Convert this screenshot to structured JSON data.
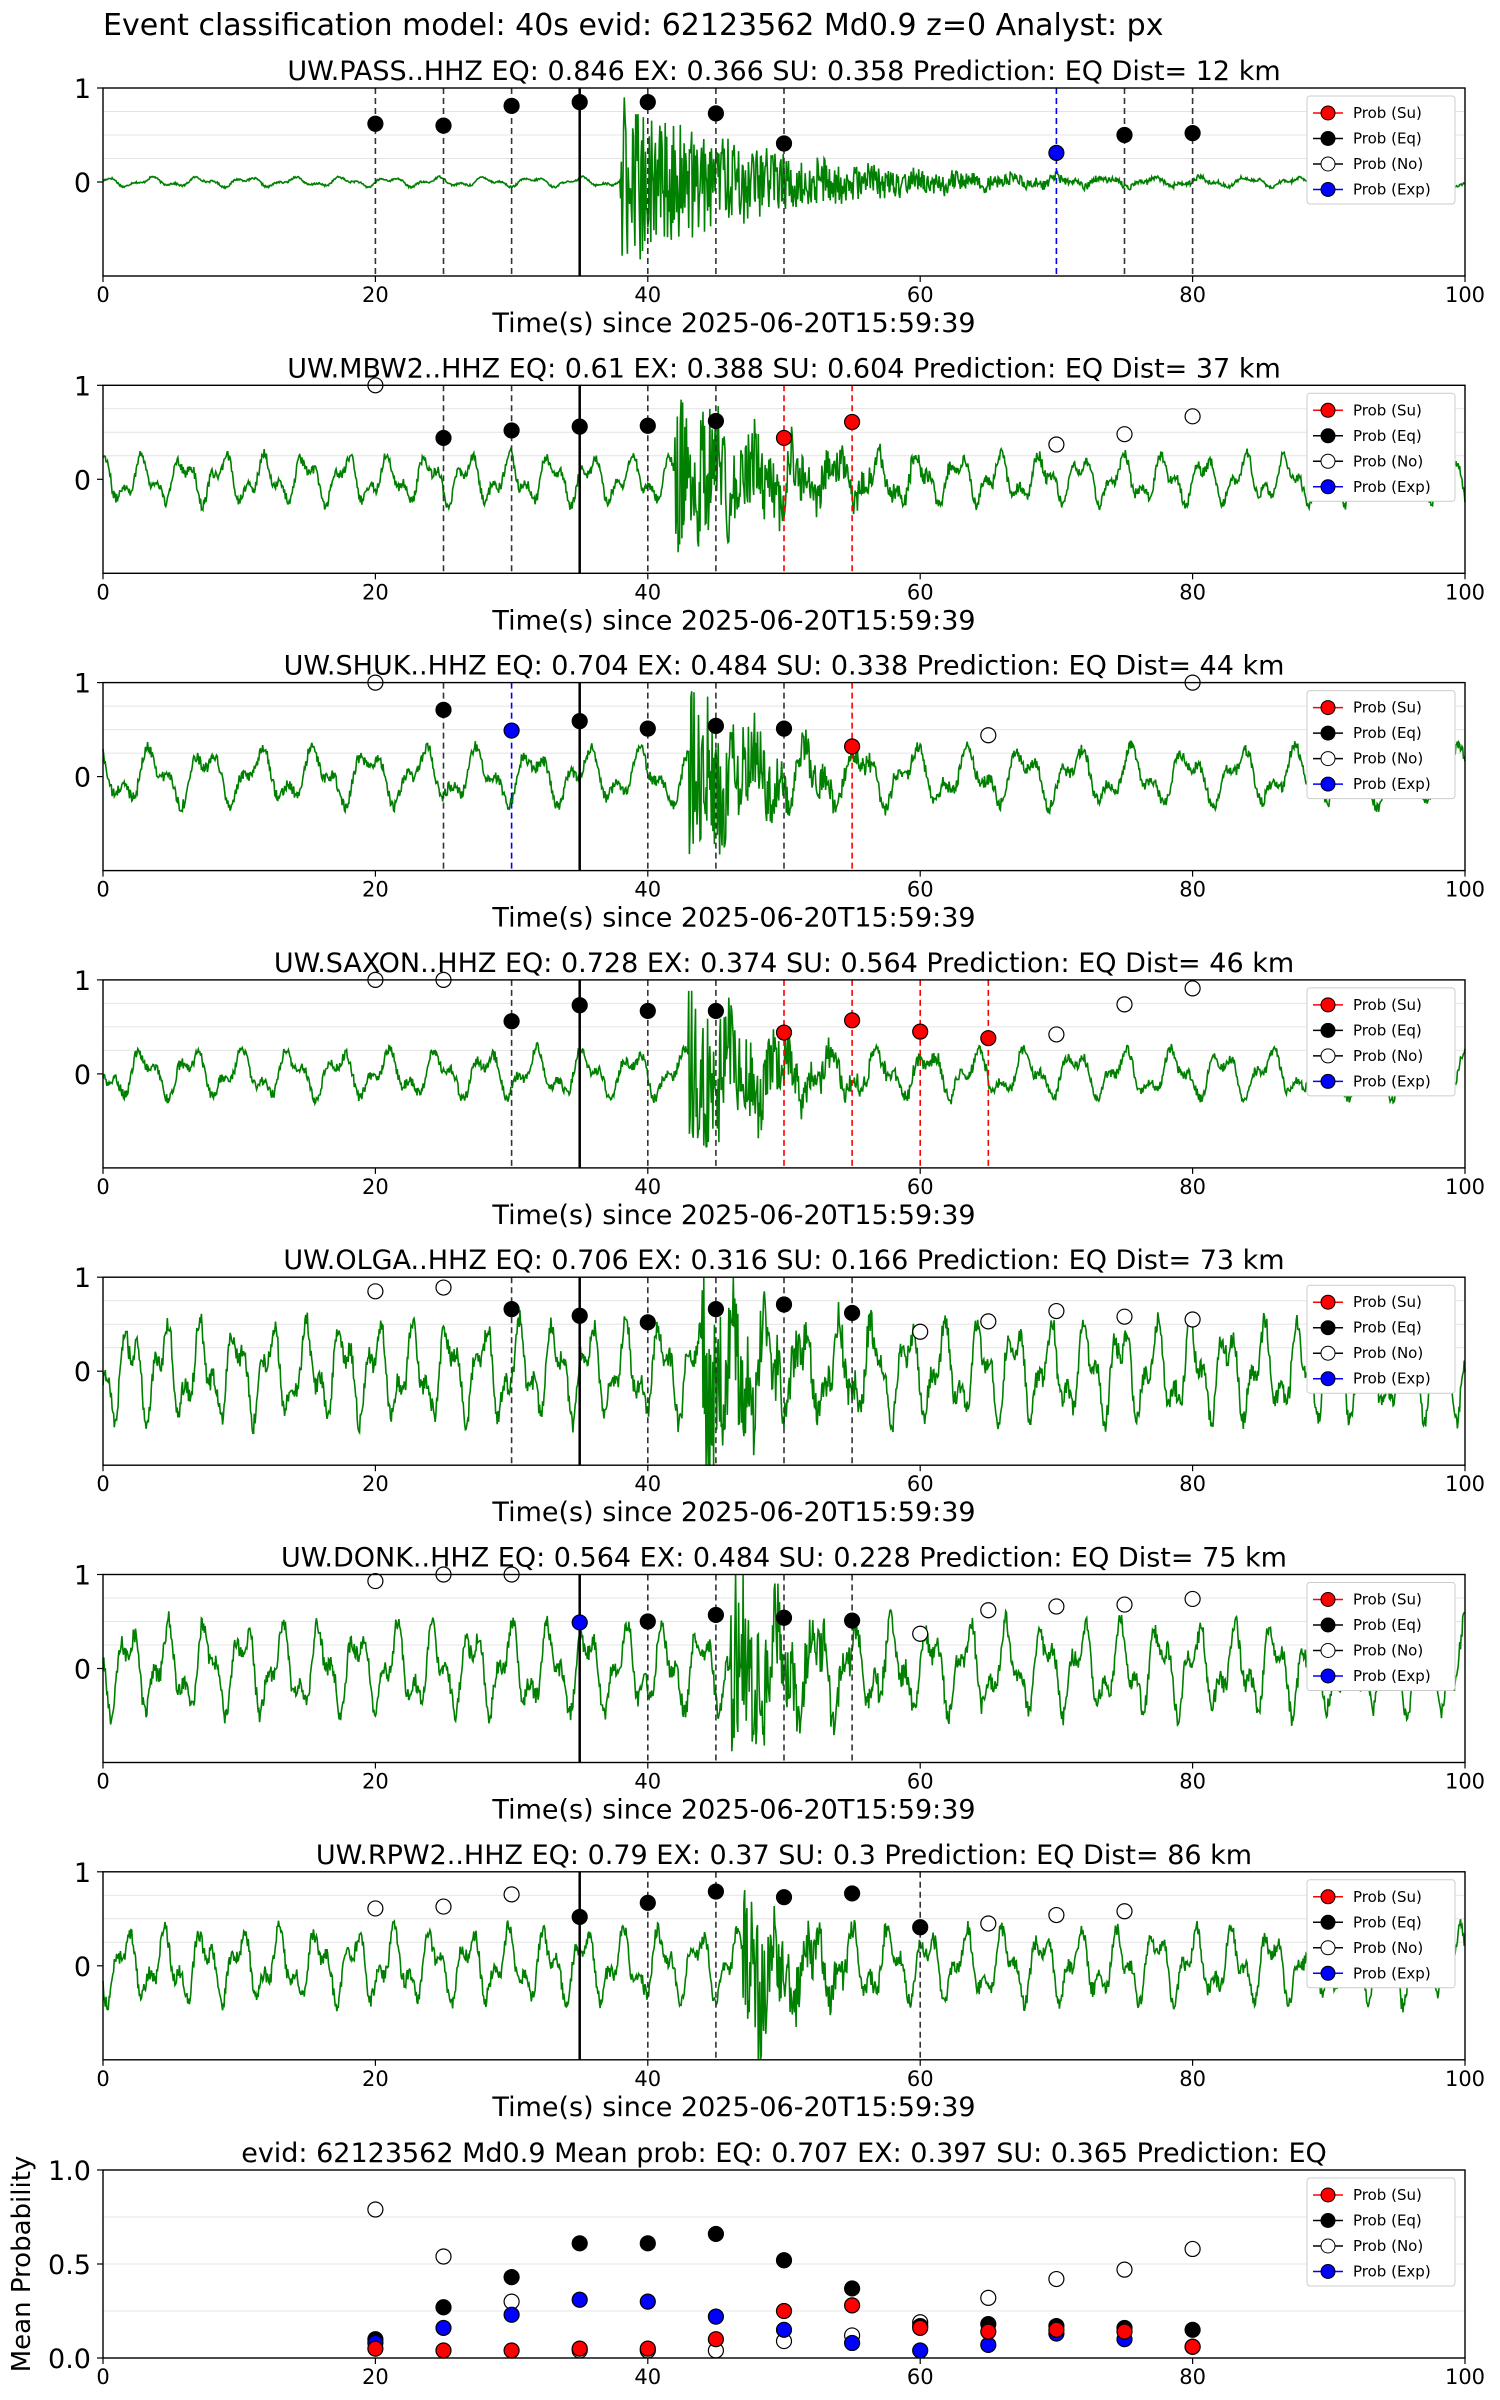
{
  "figure_title": "Event classification model: 40s evid: 62123562 Md0.9 z=0 Analyst: px",
  "legend_labels": [
    "Prob (Su)",
    "Prob (Eq)",
    "Prob (No)",
    "Prob (Exp)"
  ],
  "colors": {
    "su": "#ff0000",
    "eq": "#000000",
    "no": "#ffffff",
    "exp": "#0000ff",
    "trace": "#008000"
  },
  "chart_data": [
    {
      "type": "line",
      "title": "UW.PASS..HHZ   EQ: 0.846  EX: 0.366  SU: 0.358   Prediction: EQ    Dist= 12 km",
      "xlabel": "Time(s) since 2025-06-20T15:59:39",
      "xlim": [
        0,
        100
      ],
      "ylim": [
        -1,
        1
      ],
      "x_ticks": [
        "0",
        "20",
        "40",
        "60",
        "80",
        "100"
      ],
      "y_ticks": [
        "1",
        "0"
      ],
      "trace": {
        "onset": 38,
        "coda": 62,
        "noise": 0.06,
        "peak": 0.95,
        "period": 3.5
      },
      "pick_time": 35,
      "points": [
        {
          "x": 20,
          "y": 0.62,
          "class": "eq"
        },
        {
          "x": 25,
          "y": 0.6,
          "class": "eq"
        },
        {
          "x": 30,
          "y": 0.81,
          "class": "eq"
        },
        {
          "x": 35,
          "y": 0.85,
          "class": "eq"
        },
        {
          "x": 40,
          "y": 0.85,
          "class": "eq"
        },
        {
          "x": 45,
          "y": 0.73,
          "class": "eq"
        },
        {
          "x": 50,
          "y": 0.41,
          "class": "eq"
        },
        {
          "x": 70,
          "y": 0.31,
          "class": "exp"
        },
        {
          "x": 75,
          "y": 0.5,
          "class": "eq"
        },
        {
          "x": 80,
          "y": 0.52,
          "class": "eq"
        }
      ],
      "vlines": [
        {
          "x": 20,
          "class": "eq"
        },
        {
          "x": 25,
          "class": "eq"
        },
        {
          "x": 30,
          "class": "eq"
        },
        {
          "x": 40,
          "class": "eq"
        },
        {
          "x": 45,
          "class": "eq"
        },
        {
          "x": 50,
          "class": "eq"
        },
        {
          "x": 70,
          "class": "exp"
        },
        {
          "x": 75,
          "class": "eq"
        },
        {
          "x": 80,
          "class": "eq"
        }
      ]
    },
    {
      "type": "line",
      "title": "UW.MBW2..HHZ   EQ: 0.61  EX: 0.388  SU: 0.604   Prediction: EQ    Dist= 37 km",
      "xlabel": "Time(s) since 2025-06-20T15:59:39",
      "xlim": [
        0,
        100
      ],
      "ylim": [
        -1,
        1
      ],
      "x_ticks": [
        "0",
        "20",
        "40",
        "60",
        "80",
        "100"
      ],
      "y_ticks": [
        "1",
        "0"
      ],
      "trace": {
        "onset": 42,
        "coda": 58,
        "noise": 0.3,
        "peak": 0.95,
        "period": 3.0
      },
      "pick_time": 35,
      "points": [
        {
          "x": 20,
          "y": 1.0,
          "class": "no"
        },
        {
          "x": 25,
          "y": 0.44,
          "class": "eq"
        },
        {
          "x": 30,
          "y": 0.52,
          "class": "eq"
        },
        {
          "x": 35,
          "y": 0.56,
          "class": "eq"
        },
        {
          "x": 40,
          "y": 0.57,
          "class": "eq"
        },
        {
          "x": 45,
          "y": 0.62,
          "class": "eq"
        },
        {
          "x": 50,
          "y": 0.44,
          "class": "su"
        },
        {
          "x": 55,
          "y": 0.61,
          "class": "su"
        },
        {
          "x": 70,
          "y": 0.37,
          "class": "no"
        },
        {
          "x": 75,
          "y": 0.48,
          "class": "no"
        },
        {
          "x": 80,
          "y": 0.67,
          "class": "no"
        }
      ],
      "vlines": [
        {
          "x": 25,
          "class": "eq"
        },
        {
          "x": 30,
          "class": "eq"
        },
        {
          "x": 40,
          "class": "eq"
        },
        {
          "x": 45,
          "class": "eq"
        },
        {
          "x": 50,
          "class": "su"
        },
        {
          "x": 55,
          "class": "su"
        }
      ]
    },
    {
      "type": "line",
      "title": "UW.SHUK..HHZ   EQ: 0.704  EX: 0.484  SU: 0.338   Prediction: EQ    Dist= 44 km",
      "xlabel": "Time(s) since 2025-06-20T15:59:39",
      "xlim": [
        0,
        100
      ],
      "ylim": [
        -1,
        1
      ],
      "x_ticks": [
        "0",
        "20",
        "40",
        "60",
        "80",
        "100"
      ],
      "y_ticks": [
        "1",
        "0"
      ],
      "trace": {
        "onset": 43,
        "coda": 55,
        "noise": 0.35,
        "peak": 1.0,
        "period": 4.0
      },
      "pick_time": 35,
      "points": [
        {
          "x": 20,
          "y": 1.0,
          "class": "no"
        },
        {
          "x": 25,
          "y": 0.71,
          "class": "eq"
        },
        {
          "x": 30,
          "y": 0.49,
          "class": "exp"
        },
        {
          "x": 35,
          "y": 0.59,
          "class": "eq"
        },
        {
          "x": 40,
          "y": 0.51,
          "class": "eq"
        },
        {
          "x": 45,
          "y": 0.54,
          "class": "eq"
        },
        {
          "x": 50,
          "y": 0.51,
          "class": "eq"
        },
        {
          "x": 55,
          "y": 0.32,
          "class": "su"
        },
        {
          "x": 65,
          "y": 0.44,
          "class": "no"
        },
        {
          "x": 80,
          "y": 1.0,
          "class": "no"
        }
      ],
      "vlines": [
        {
          "x": 25,
          "class": "eq"
        },
        {
          "x": 30,
          "class": "exp"
        },
        {
          "x": 40,
          "class": "eq"
        },
        {
          "x": 45,
          "class": "eq"
        },
        {
          "x": 50,
          "class": "eq"
        },
        {
          "x": 55,
          "class": "su"
        }
      ]
    },
    {
      "type": "line",
      "title": "UW.SAXON..HHZ   EQ: 0.728  EX: 0.374  SU: 0.564   Prediction: EQ    Dist= 46 km",
      "xlabel": "Time(s) since 2025-06-20T15:59:39",
      "xlim": [
        0,
        100
      ],
      "ylim": [
        -1,
        1
      ],
      "x_ticks": [
        "0",
        "20",
        "40",
        "60",
        "80",
        "100"
      ],
      "y_ticks": [
        "1",
        "0"
      ],
      "trace": {
        "onset": 43,
        "coda": 55,
        "noise": 0.3,
        "peak": 0.95,
        "period": 3.6
      },
      "pick_time": 35,
      "points": [
        {
          "x": 20,
          "y": 1.0,
          "class": "no"
        },
        {
          "x": 25,
          "y": 1.0,
          "class": "no"
        },
        {
          "x": 30,
          "y": 0.56,
          "class": "eq"
        },
        {
          "x": 35,
          "y": 0.73,
          "class": "eq"
        },
        {
          "x": 40,
          "y": 0.67,
          "class": "eq"
        },
        {
          "x": 45,
          "y": 0.67,
          "class": "eq"
        },
        {
          "x": 50,
          "y": 0.44,
          "class": "su"
        },
        {
          "x": 55,
          "y": 0.57,
          "class": "su"
        },
        {
          "x": 60,
          "y": 0.45,
          "class": "su"
        },
        {
          "x": 65,
          "y": 0.38,
          "class": "su"
        },
        {
          "x": 70,
          "y": 0.42,
          "class": "no"
        },
        {
          "x": 75,
          "y": 0.74,
          "class": "no"
        },
        {
          "x": 80,
          "y": 0.91,
          "class": "no"
        }
      ],
      "vlines": [
        {
          "x": 30,
          "class": "eq"
        },
        {
          "x": 40,
          "class": "eq"
        },
        {
          "x": 45,
          "class": "eq"
        },
        {
          "x": 50,
          "class": "su"
        },
        {
          "x": 55,
          "class": "su"
        },
        {
          "x": 60,
          "class": "su"
        },
        {
          "x": 65,
          "class": "su"
        }
      ]
    },
    {
      "type": "line",
      "title": "UW.OLGA..HHZ   EQ: 0.706  EX: 0.316  SU: 0.166   Prediction: EQ    Dist= 73 km",
      "xlabel": "Time(s) since 2025-06-20T15:59:39",
      "xlim": [
        0,
        100
      ],
      "ylim": [
        -1,
        1
      ],
      "x_ticks": [
        "0",
        "20",
        "40",
        "60",
        "80",
        "100"
      ],
      "y_ticks": [
        "1",
        "0"
      ],
      "trace": {
        "onset": 44,
        "coda": 56,
        "noise": 0.6,
        "peak": 0.95,
        "period": 2.6
      },
      "pick_time": 35,
      "points": [
        {
          "x": 20,
          "y": 0.85,
          "class": "no"
        },
        {
          "x": 25,
          "y": 0.89,
          "class": "no"
        },
        {
          "x": 30,
          "y": 0.66,
          "class": "eq"
        },
        {
          "x": 35,
          "y": 0.59,
          "class": "eq"
        },
        {
          "x": 40,
          "y": 0.52,
          "class": "eq"
        },
        {
          "x": 45,
          "y": 0.66,
          "class": "eq"
        },
        {
          "x": 50,
          "y": 0.71,
          "class": "eq"
        },
        {
          "x": 55,
          "y": 0.62,
          "class": "eq"
        },
        {
          "x": 60,
          "y": 0.42,
          "class": "no"
        },
        {
          "x": 65,
          "y": 0.53,
          "class": "no"
        },
        {
          "x": 70,
          "y": 0.64,
          "class": "no"
        },
        {
          "x": 75,
          "y": 0.58,
          "class": "no"
        },
        {
          "x": 80,
          "y": 0.55,
          "class": "no"
        }
      ],
      "vlines": [
        {
          "x": 30,
          "class": "eq"
        },
        {
          "x": 40,
          "class": "eq"
        },
        {
          "x": 45,
          "class": "eq"
        },
        {
          "x": 50,
          "class": "eq"
        },
        {
          "x": 55,
          "class": "eq"
        }
      ]
    },
    {
      "type": "line",
      "title": "UW.DONK..HHZ   EQ: 0.564  EX: 0.484  SU: 0.228   Prediction: EQ    Dist= 75 km",
      "xlabel": "Time(s) since 2025-06-20T15:59:39",
      "xlim": [
        0,
        100
      ],
      "ylim": [
        -1,
        1
      ],
      "x_ticks": [
        "0",
        "20",
        "40",
        "60",
        "80",
        "100"
      ],
      "y_ticks": [
        "1",
        "0"
      ],
      "trace": {
        "onset": 46,
        "coda": 56,
        "noise": 0.55,
        "peak": 1.0,
        "period": 2.8
      },
      "pick_time": 35,
      "points": [
        {
          "x": 20,
          "y": 0.93,
          "class": "no"
        },
        {
          "x": 25,
          "y": 1.0,
          "class": "no"
        },
        {
          "x": 30,
          "y": 1.0,
          "class": "no"
        },
        {
          "x": 35,
          "y": 0.49,
          "class": "exp"
        },
        {
          "x": 40,
          "y": 0.5,
          "class": "eq"
        },
        {
          "x": 45,
          "y": 0.57,
          "class": "eq"
        },
        {
          "x": 50,
          "y": 0.54,
          "class": "eq"
        },
        {
          "x": 55,
          "y": 0.51,
          "class": "eq"
        },
        {
          "x": 60,
          "y": 0.37,
          "class": "no"
        },
        {
          "x": 65,
          "y": 0.62,
          "class": "no"
        },
        {
          "x": 70,
          "y": 0.66,
          "class": "no"
        },
        {
          "x": 75,
          "y": 0.68,
          "class": "no"
        },
        {
          "x": 80,
          "y": 0.74,
          "class": "no"
        }
      ],
      "vlines": [
        {
          "x": 40,
          "class": "eq"
        },
        {
          "x": 45,
          "class": "eq"
        },
        {
          "x": 50,
          "class": "eq"
        },
        {
          "x": 55,
          "class": "eq"
        }
      ]
    },
    {
      "type": "line",
      "title": "UW.RPW2..HHZ   EQ: 0.79  EX: 0.37  SU: 0.3   Prediction: EQ    Dist= 86 km",
      "xlabel": "Time(s) since 2025-06-20T15:59:39",
      "xlim": [
        0,
        100
      ],
      "ylim": [
        -1,
        1
      ],
      "x_ticks": [
        "0",
        "20",
        "40",
        "60",
        "80",
        "100"
      ],
      "y_ticks": [
        "1",
        "0"
      ],
      "trace": {
        "onset": 47,
        "coda": 55,
        "noise": 0.45,
        "peak": 1.0,
        "period": 2.8
      },
      "pick_time": 35,
      "points": [
        {
          "x": 20,
          "y": 0.61,
          "class": "no"
        },
        {
          "x": 25,
          "y": 0.63,
          "class": "no"
        },
        {
          "x": 30,
          "y": 0.76,
          "class": "no"
        },
        {
          "x": 35,
          "y": 0.52,
          "class": "eq"
        },
        {
          "x": 40,
          "y": 0.67,
          "class": "eq"
        },
        {
          "x": 45,
          "y": 0.79,
          "class": "eq"
        },
        {
          "x": 50,
          "y": 0.73,
          "class": "eq"
        },
        {
          "x": 55,
          "y": 0.77,
          "class": "eq"
        },
        {
          "x": 60,
          "y": 0.41,
          "class": "eq"
        },
        {
          "x": 65,
          "y": 0.45,
          "class": "no"
        },
        {
          "x": 70,
          "y": 0.54,
          "class": "no"
        },
        {
          "x": 75,
          "y": 0.58,
          "class": "no"
        }
      ],
      "vlines": [
        {
          "x": 40,
          "class": "eq"
        },
        {
          "x": 45,
          "class": "eq"
        },
        {
          "x": 60,
          "class": "eq"
        }
      ]
    },
    {
      "type": "scatter",
      "title": "evid: 62123562  Md0.9   Mean prob:   EQ: 0.707  EX: 0.397  SU: 0.365   Prediction: EQ",
      "ylabel": "Mean Probability",
      "xlim": [
        0,
        100
      ],
      "ylim": [
        0,
        1
      ],
      "x_ticks": [
        "0",
        "20",
        "40",
        "60",
        "80",
        "100"
      ],
      "y_ticks": [
        "0.0",
        "0.5",
        "1.0"
      ],
      "x": [
        20,
        25,
        30,
        35,
        40,
        45,
        50,
        55,
        60,
        65,
        70,
        75,
        80
      ],
      "series": [
        {
          "name": "Prob (No)",
          "class": "no",
          "values": [
            0.79,
            0.54,
            0.3,
            0.04,
            0.04,
            0.04,
            0.09,
            0.12,
            0.19,
            0.32,
            0.42,
            0.47,
            0.58
          ]
        },
        {
          "name": "Prob (Eq)",
          "class": "eq",
          "values": [
            0.1,
            0.27,
            0.43,
            0.61,
            0.61,
            0.66,
            0.52,
            0.37,
            0.17,
            0.18,
            0.17,
            0.16,
            0.15
          ]
        },
        {
          "name": "Prob (Exp)",
          "class": "exp",
          "values": [
            0.08,
            0.16,
            0.23,
            0.31,
            0.3,
            0.22,
            0.15,
            0.08,
            0.04,
            0.07,
            0.13,
            0.1,
            0.06
          ]
        },
        {
          "name": "Prob (Su)",
          "class": "su",
          "values": [
            0.05,
            0.04,
            0.04,
            0.05,
            0.05,
            0.1,
            0.25,
            0.28,
            0.16,
            0.14,
            0.15,
            0.14,
            0.06
          ]
        }
      ]
    }
  ]
}
